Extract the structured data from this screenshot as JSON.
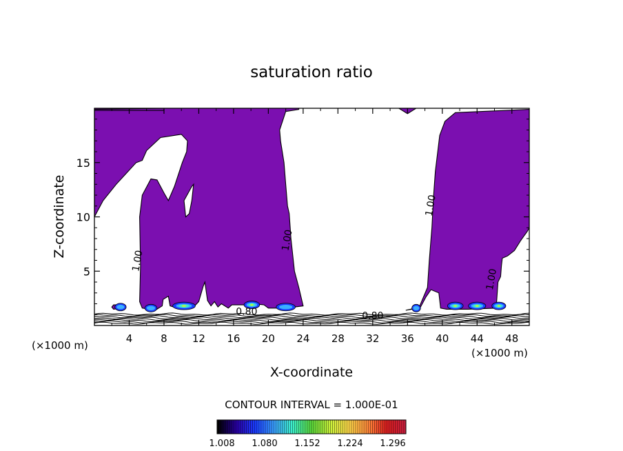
{
  "chart_data": {
    "type": "contour",
    "title": "saturation ratio",
    "xlabel": "X-coordinate",
    "ylabel": "Z-coordinate",
    "x_unit_left": "(×1000 m)",
    "x_unit_right": "(×1000 m)",
    "xlim": [
      0,
      50
    ],
    "ylim": [
      0,
      20
    ],
    "x_ticks": [
      4,
      8,
      12,
      16,
      20,
      24,
      28,
      32,
      36,
      40,
      44,
      48
    ],
    "y_ticks": [
      5,
      10,
      15
    ],
    "contour_labels": [
      {
        "text": "1.00",
        "x": 5.3,
        "y": 5.9
      },
      {
        "text": "1.00",
        "x": 22.5,
        "y": 7.8
      },
      {
        "text": "1.00",
        "x": 39.0,
        "y": 11.0
      },
      {
        "text": "1.00",
        "x": 46.0,
        "y": 4.2
      },
      {
        "text": "0.80",
        "x": 17.5,
        "y": 1.0
      },
      {
        "text": "0.80",
        "x": 32.0,
        "y": 0.6
      }
    ],
    "contour_interval_text": "CONTOUR INTERVAL = 1.000E-01",
    "colorbar": {
      "tick_labels": [
        "1.008",
        "1.080",
        "1.152",
        "1.224",
        "1.296"
      ],
      "colors": [
        "#000000",
        "#2a00a8",
        "#1a3cff",
        "#3aa0ff",
        "#3cf0c8",
        "#5ad83a",
        "#c8f03a",
        "#ffd84a",
        "#ff8a3a",
        "#e02020",
        "#c81e3c"
      ]
    },
    "fill_color": "#7b0fb0",
    "cloud_regions": [
      [
        [
          0,
          10
        ],
        [
          0,
          20
        ],
        [
          23.5,
          20
        ],
        [
          23.5,
          19.9
        ],
        [
          22,
          19.7
        ],
        [
          21.3,
          18
        ],
        [
          21.4,
          17
        ],
        [
          21.8,
          15
        ],
        [
          22,
          13
        ],
        [
          22.2,
          11
        ],
        [
          22.4,
          10.3
        ],
        [
          22.6,
          8
        ],
        [
          23,
          5
        ],
        [
          23.5,
          3.5
        ],
        [
          24,
          1.8
        ],
        [
          22,
          1.6
        ],
        [
          20,
          1.6
        ],
        [
          19.5,
          1.9
        ],
        [
          18.3,
          2
        ],
        [
          17.3,
          1.9
        ],
        [
          15.8,
          1.9
        ],
        [
          15.4,
          1.6
        ],
        [
          14.6,
          2
        ],
        [
          14.2,
          1.7
        ],
        [
          13.8,
          2.2
        ],
        [
          13.4,
          1.8
        ],
        [
          13,
          2.3
        ],
        [
          12.7,
          4
        ],
        [
          12.5,
          3.6
        ],
        [
          12,
          2.2
        ],
        [
          11.3,
          1.6
        ],
        [
          9.5,
          1.6
        ],
        [
          8.7,
          1.8
        ],
        [
          8.5,
          2.7
        ],
        [
          7.9,
          2.4
        ],
        [
          7.8,
          1.8
        ],
        [
          7,
          1.4
        ],
        [
          5.5,
          1.6
        ],
        [
          5.2,
          2.2
        ],
        [
          5.3,
          5.5
        ],
        [
          5.2,
          10
        ],
        [
          5.5,
          12
        ],
        [
          6.5,
          13.5
        ],
        [
          7.2,
          13.4
        ],
        [
          8,
          12.2
        ],
        [
          8.5,
          11.5
        ],
        [
          9.2,
          12.8
        ],
        [
          10.1,
          15
        ],
        [
          10.6,
          16
        ],
        [
          10.7,
          17
        ],
        [
          10,
          17.6
        ],
        [
          7.6,
          17.3
        ],
        [
          6,
          16.1
        ],
        [
          5.5,
          15.2
        ],
        [
          4.8,
          15
        ],
        [
          2.5,
          13
        ],
        [
          1,
          11.5
        ]
      ],
      [
        [
          35.8,
          1.4
        ],
        [
          37.3,
          1.6
        ],
        [
          38.3,
          3.5
        ],
        [
          38.5,
          6
        ],
        [
          38.8,
          9
        ],
        [
          39,
          12
        ],
        [
          39.2,
          14.2
        ],
        [
          39.7,
          17.5
        ],
        [
          40.3,
          18.8
        ],
        [
          41.5,
          19.6
        ],
        [
          50,
          19.9
        ],
        [
          50,
          9
        ],
        [
          49.8,
          8.7
        ],
        [
          49,
          7.8
        ],
        [
          48.3,
          6.9
        ],
        [
          47.5,
          6.4
        ],
        [
          46.9,
          6.2
        ],
        [
          46.8,
          5.5
        ],
        [
          46.7,
          4.5
        ],
        [
          46.4,
          4
        ],
        [
          46.2,
          1.6
        ],
        [
          43,
          1.5
        ],
        [
          40.5,
          1.5
        ],
        [
          39.8,
          1.6
        ],
        [
          39.6,
          3
        ],
        [
          38.7,
          3.3
        ],
        [
          38.1,
          2.6
        ],
        [
          37.5,
          1.7
        ]
      ],
      [
        [
          2,
          1.7
        ],
        [
          2.2,
          1.9
        ],
        [
          3.2,
          1.9
        ],
        [
          3.2,
          1.6
        ],
        [
          2.2,
          1.5
        ]
      ],
      [
        [
          35,
          20
        ],
        [
          36,
          19.5
        ],
        [
          37,
          20
        ]
      ],
      [
        [
          0,
          19.9
        ],
        [
          8,
          20
        ],
        [
          8,
          19.8
        ],
        [
          0,
          19.8
        ]
      ]
    ],
    "holes": [
      [
        [
          10.3,
          11.5
        ],
        [
          11.2,
          12.8
        ],
        [
          11.4,
          13
        ],
        [
          11.2,
          11.5
        ],
        [
          10.9,
          10.3
        ],
        [
          10.5,
          10
        ]
      ]
    ],
    "high_spots": [
      {
        "x": 3.0,
        "y": 1.7,
        "w": 1.3,
        "level": 0.3
      },
      {
        "x": 6.5,
        "y": 1.6,
        "w": 1.4,
        "level": 0.35
      },
      {
        "x": 10.3,
        "y": 1.8,
        "w": 2.6,
        "level": 0.6
      },
      {
        "x": 18.1,
        "y": 1.9,
        "w": 1.8,
        "level": 0.55
      },
      {
        "x": 22.0,
        "y": 1.7,
        "w": 2.2,
        "level": 0.3
      },
      {
        "x": 37.0,
        "y": 1.6,
        "w": 1.0,
        "level": 0.25
      },
      {
        "x": 41.5,
        "y": 1.8,
        "w": 1.8,
        "level": 0.55
      },
      {
        "x": 44.0,
        "y": 1.8,
        "w": 2.0,
        "level": 0.5
      },
      {
        "x": 46.5,
        "y": 1.8,
        "w": 1.6,
        "level": 0.45
      }
    ]
  }
}
